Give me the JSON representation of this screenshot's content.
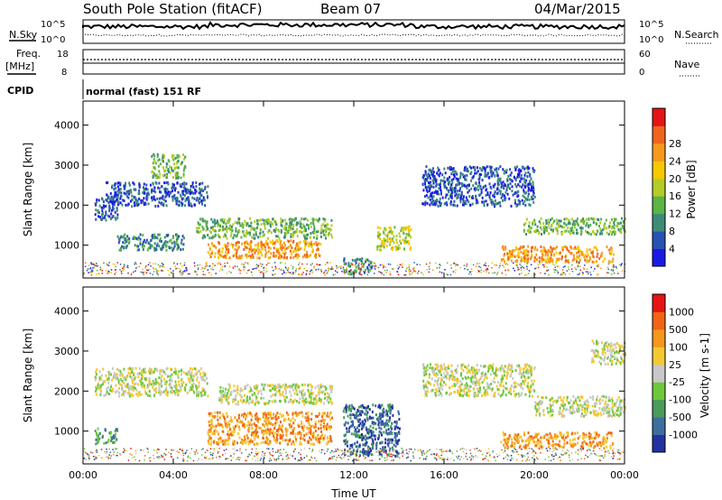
{
  "header": {
    "station": "South Pole Station (fitACF)",
    "beam": "Beam 07",
    "date": "04/Mar/2015"
  },
  "aux_panels": {
    "nsky_label": "N.Sky",
    "nsearch_label": "N.Search",
    "noise_ticks_left": [
      "10^5",
      "10^0"
    ],
    "noise_ticks_right": [
      "10^5",
      "10^0"
    ],
    "freq_label_1": "Freq.",
    "freq_label_2": "[MHz]",
    "freq_ticks": [
      "18",
      "8"
    ],
    "nave_label": "Nave",
    "nave_ticks": [
      "60",
      "0"
    ],
    "cpid_label": "CPID",
    "cpid_text": "normal (fast) 151 RF"
  },
  "chart_data": [
    {
      "type": "heatmap",
      "panel": "power",
      "ylabel": "Slant Range [km]",
      "xlabel": "",
      "x_range_hours": [
        0,
        24
      ],
      "ylim": [
        180,
        4600
      ],
      "yticks": [
        "1000",
        "2000",
        "3000",
        "4000"
      ],
      "colorbar": {
        "label": "Power [dB]",
        "ticks": [
          "4",
          "8",
          "12",
          "16",
          "20",
          "24",
          "28"
        ],
        "colors": [
          "#1a1ae6",
          "#2852b4",
          "#3c8c78",
          "#5ab446",
          "#b4cc28",
          "#f5c800",
          "#f59a1e",
          "#f0641e",
          "#e61414"
        ]
      },
      "echo_regions": [
        {
          "t": [
            0.5,
            1.5
          ],
          "r": [
            1650,
            2250
          ],
          "level": 1
        },
        {
          "t": [
            1.0,
            5.5
          ],
          "r": [
            2000,
            2600
          ],
          "level": 1
        },
        {
          "t": [
            1.5,
            4.5
          ],
          "r": [
            900,
            1300
          ],
          "level": 2
        },
        {
          "t": [
            3.0,
            4.5
          ],
          "r": [
            2700,
            3300
          ],
          "level": 3
        },
        {
          "t": [
            5.5,
            10.5
          ],
          "r": [
            700,
            1150
          ],
          "level": 6
        },
        {
          "t": [
            5.0,
            11.0
          ],
          "r": [
            1200,
            1700
          ],
          "level": 3
        },
        {
          "t": [
            11.5,
            12.8
          ],
          "r": [
            300,
            700
          ],
          "level": 2
        },
        {
          "t": [
            13.0,
            14.5
          ],
          "r": [
            900,
            1500
          ],
          "level": 4
        },
        {
          "t": [
            15.0,
            20.0
          ],
          "r": [
            2000,
            3000
          ],
          "level": 1
        },
        {
          "t": [
            18.5,
            23.5
          ],
          "r": [
            600,
            1000
          ],
          "level": 6
        },
        {
          "t": [
            19.5,
            24.0
          ],
          "r": [
            1300,
            1700
          ],
          "level": 3
        }
      ]
    },
    {
      "type": "heatmap",
      "panel": "velocity",
      "ylabel": "Slant Range [km]",
      "xlabel": "Time UT",
      "x_range_hours": [
        0,
        24
      ],
      "ylim": [
        180,
        4600
      ],
      "yticks": [
        "1000",
        "2000",
        "3000",
        "4000"
      ],
      "xticks": [
        "00:00",
        "04:00",
        "08:00",
        "12:00",
        "16:00",
        "20:00",
        "00:00"
      ],
      "colorbar": {
        "label": "Velocity [m s-1]",
        "ticks": [
          "1000",
          "500",
          "100",
          "25",
          "-25",
          "-100",
          "-500",
          "-1000"
        ],
        "colors": [
          "#2332a0",
          "#3c6ea0",
          "#4a9a5a",
          "#6ec83c",
          "#c8c8c8",
          "#f5c832",
          "#f5961e",
          "#f06414",
          "#e61414"
        ]
      },
      "echo_regions": [
        {
          "t": [
            0.5,
            5.5
          ],
          "r": [
            1900,
            2600
          ],
          "level": 4
        },
        {
          "t": [
            0.5,
            1.5
          ],
          "r": [
            700,
            1100
          ],
          "level": 2
        },
        {
          "t": [
            5.5,
            11.0
          ],
          "r": [
            700,
            1500
          ],
          "level": 6
        },
        {
          "t": [
            6.0,
            11.0
          ],
          "r": [
            1700,
            2200
          ],
          "level": 4
        },
        {
          "t": [
            11.5,
            14.0
          ],
          "r": [
            400,
            1700
          ],
          "level": 1
        },
        {
          "t": [
            15.0,
            20.0
          ],
          "r": [
            1900,
            2700
          ],
          "level": 4
        },
        {
          "t": [
            18.5,
            23.5
          ],
          "r": [
            600,
            1000
          ],
          "level": 6
        },
        {
          "t": [
            20.0,
            24.0
          ],
          "r": [
            1400,
            1900
          ],
          "level": 4
        },
        {
          "t": [
            22.5,
            24.0
          ],
          "r": [
            2700,
            3300
          ],
          "level": 4
        }
      ]
    }
  ]
}
